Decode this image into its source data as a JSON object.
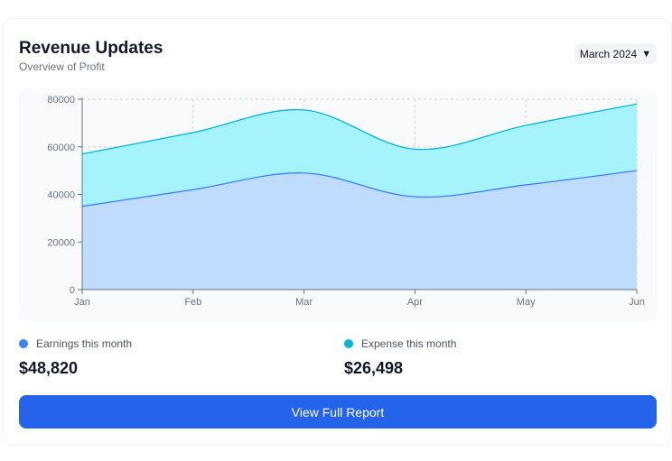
{
  "header": {
    "title": "Revenue Updates",
    "subtitle": "Overview of Profit",
    "month_selector": "March 2024",
    "caret_icon": "caret-down-icon"
  },
  "colors": {
    "earnings": "#3b82f6",
    "expense": "#06b6d4",
    "earnings_fill": "#bfdbfe",
    "expense_fill": "#a5f3fc",
    "button": "#2563eb"
  },
  "chart_data": {
    "type": "area",
    "categories": [
      "Jan",
      "Feb",
      "Mar",
      "Apr",
      "May",
      "Jun"
    ],
    "series": [
      {
        "name": "Earnings",
        "values": [
          35000,
          42000,
          49000,
          39000,
          44000,
          50000
        ]
      },
      {
        "name": "Expense",
        "values": [
          57000,
          66000,
          75500,
          59000,
          69000,
          78000
        ]
      }
    ],
    "ylim": [
      0,
      80000
    ],
    "yticks": [
      "0",
      "20000",
      "40000",
      "60000",
      "80000"
    ],
    "grid": true,
    "stacked": false
  },
  "summary": {
    "earnings_label": "Earnings this month",
    "earnings_value": "$48,820",
    "expense_label": "Expense this month",
    "expense_value": "$26,498"
  },
  "button": {
    "label": "View Full Report"
  }
}
